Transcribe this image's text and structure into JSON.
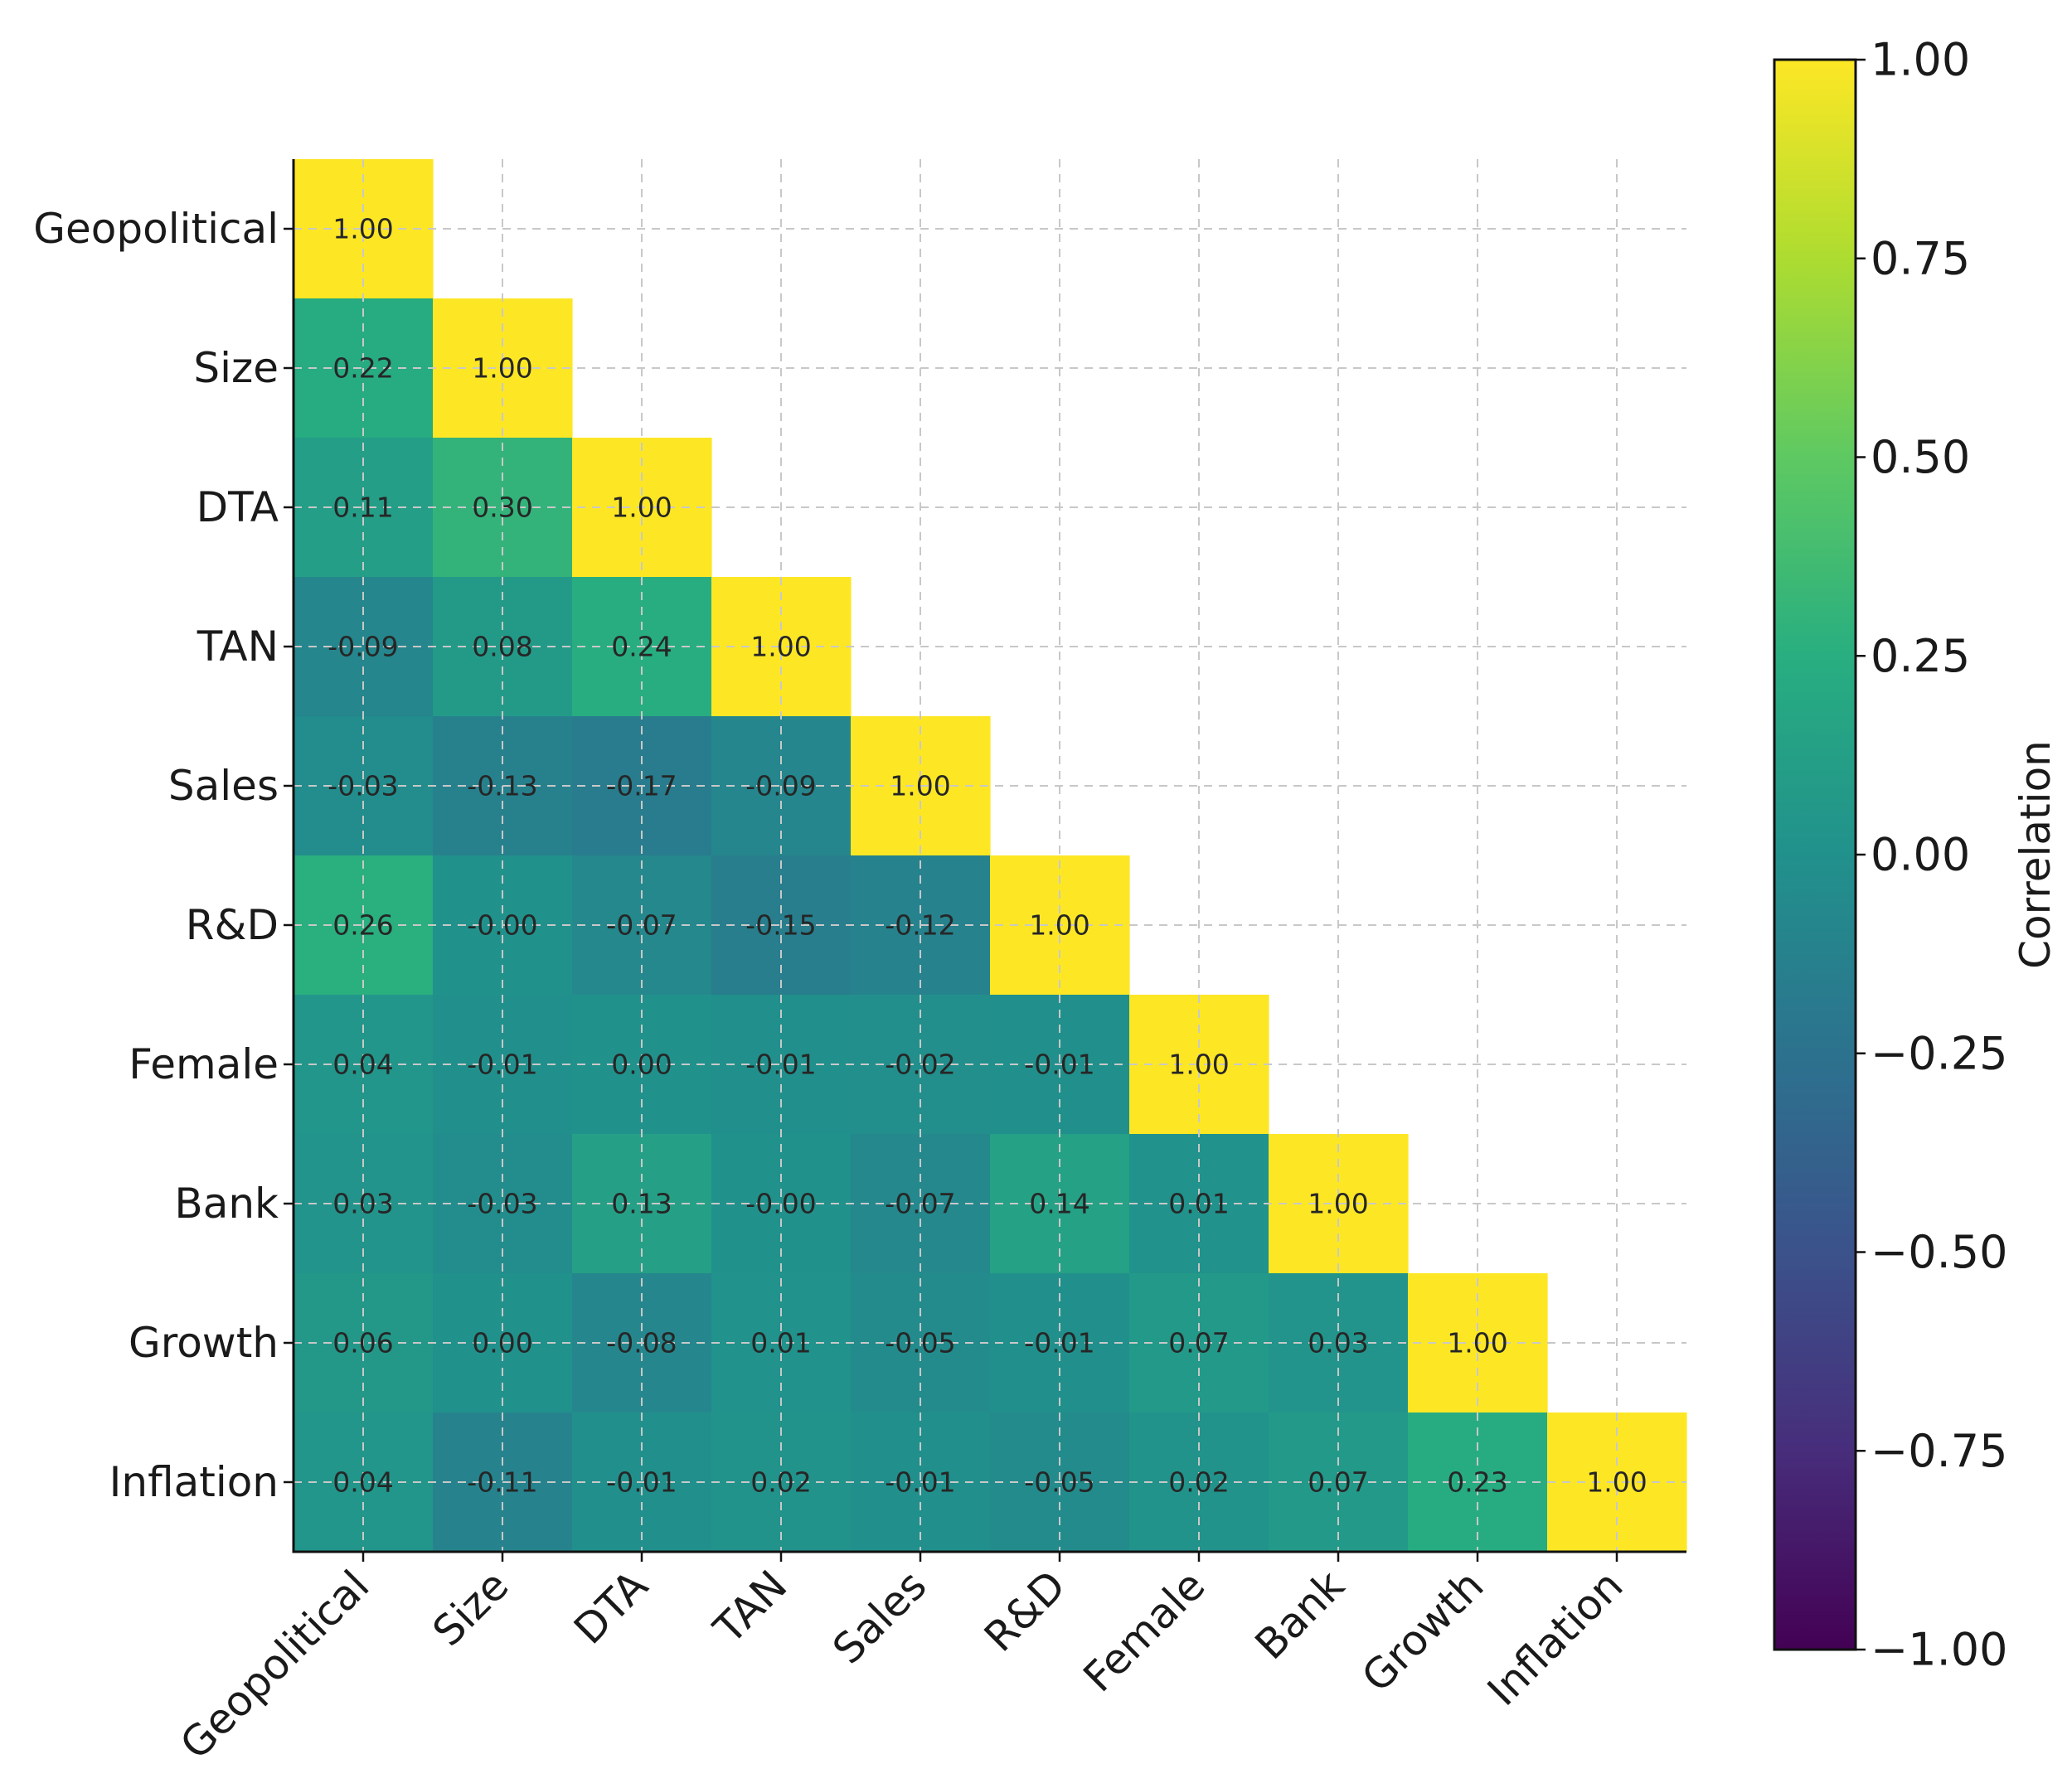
{
  "chart_data": {
    "type": "heatmap",
    "title": "",
    "variables": [
      "Geopolitical",
      "Size",
      "DTA",
      "TAN",
      "Sales",
      "R&D",
      "Female",
      "Bank",
      "Growth",
      "Inflation"
    ],
    "matrix_lower": [
      [
        "1.00"
      ],
      [
        "0.22",
        "1.00"
      ],
      [
        "0.11",
        "0.30",
        "1.00"
      ],
      [
        "-0.09",
        "0.08",
        "0.24",
        "1.00"
      ],
      [
        "-0.03",
        "-0.13",
        "-0.17",
        "-0.09",
        "1.00"
      ],
      [
        "0.26",
        "-0.00",
        "-0.07",
        "-0.15",
        "-0.12",
        "1.00"
      ],
      [
        "0.04",
        "-0.01",
        "0.00",
        "-0.01",
        "-0.02",
        "-0.01",
        "1.00"
      ],
      [
        "0.03",
        "-0.03",
        "0.13",
        "-0.00",
        "-0.07",
        "0.14",
        "0.01",
        "1.00"
      ],
      [
        "0.06",
        "0.00",
        "-0.08",
        "0.01",
        "-0.05",
        "-0.01",
        "0.07",
        "0.03",
        "1.00"
      ],
      [
        "0.04",
        "-0.11",
        "-0.01",
        "0.02",
        "-0.01",
        "-0.05",
        "0.02",
        "0.07",
        "0.23",
        "1.00"
      ]
    ],
    "colorbar": {
      "label": "Correlation",
      "min": -1.0,
      "max": 1.0,
      "colormap": "viridis",
      "ticks": [
        1.0,
        0.75,
        0.5,
        0.25,
        0.0,
        -0.25,
        -0.5,
        -0.75,
        -1.0
      ],
      "tick_labels": [
        "1.00",
        "0.75",
        "0.50",
        "0.25",
        "0.00",
        "−0.25",
        "−0.50",
        "−0.75",
        "−1.00"
      ]
    },
    "grid": true
  }
}
